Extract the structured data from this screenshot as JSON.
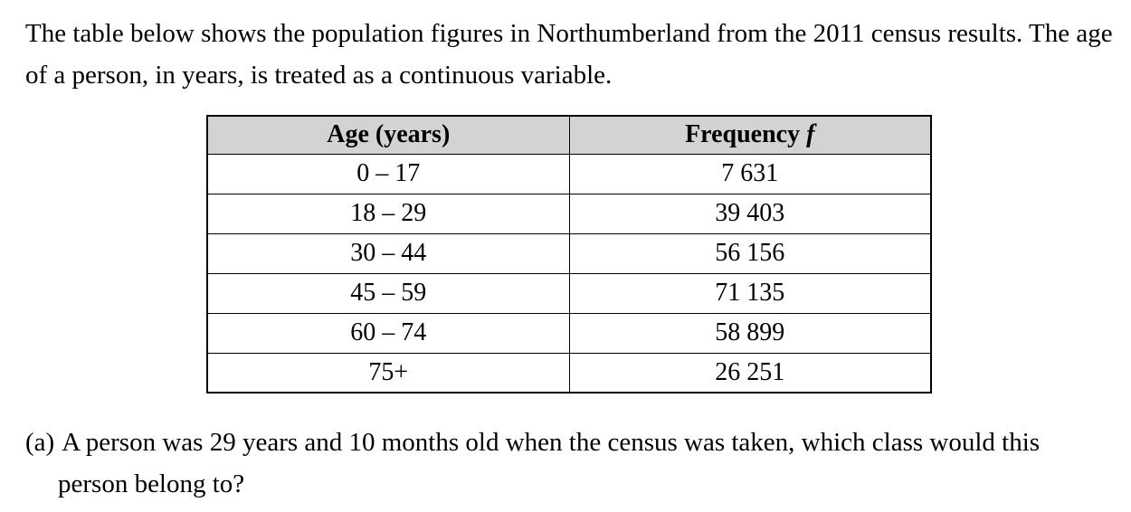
{
  "document": {
    "intro": "The table below shows the population figures in Northumberland from the 2011 census results. The age of a person, in years, is treated as a continuous variable.",
    "table": {
      "header_bg": "#d3d3d3",
      "header_age": "Age (years)",
      "header_frequency": "Frequency",
      "header_frequency_symbol": "f",
      "rows": [
        {
          "age": "0 – 17",
          "frequency": "7 631"
        },
        {
          "age": "18 – 29",
          "frequency": "39 403"
        },
        {
          "age": "30 – 44",
          "frequency": "56 156"
        },
        {
          "age": "45 – 59",
          "frequency": "71 135"
        },
        {
          "age": "60 – 74",
          "frequency": "58 899"
        },
        {
          "age": "75+",
          "frequency": "26 251"
        }
      ]
    },
    "question_a": {
      "label": "(a)",
      "text": "A person was 29 years and 10 months old when the census was taken, which class would this person belong to?"
    }
  }
}
